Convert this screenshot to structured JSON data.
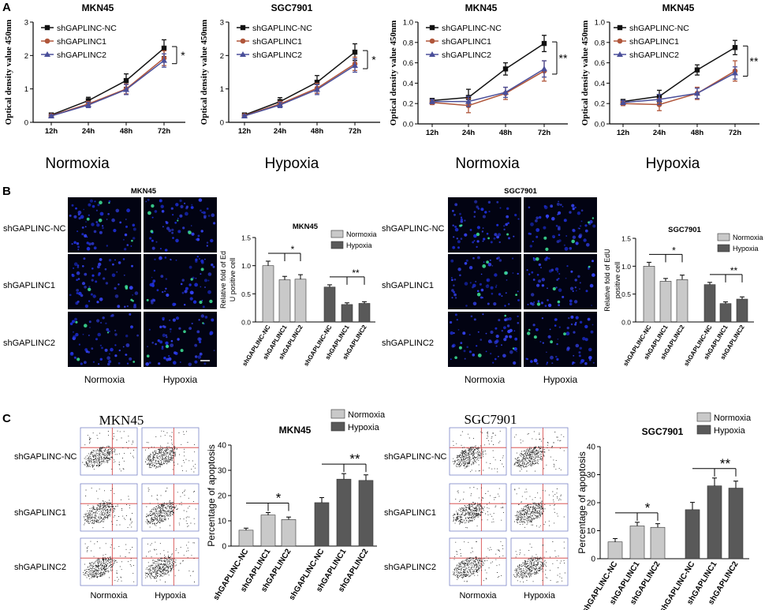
{
  "panel_labels": [
    "A",
    "B",
    "C"
  ],
  "colors": {
    "nc": "#111111",
    "c1": "#b0563a",
    "c2": "#4a4f9a",
    "normoxia": "#c9c9c9",
    "hypoxia": "#595959"
  },
  "chart_data": [
    {
      "type": "line",
      "panel": "A",
      "title": "MKN45",
      "condition": "Normoxia",
      "categories": [
        "12h",
        "24h",
        "48h",
        "72h"
      ],
      "ylabel": "Optical density value 450nm",
      "ylim": [
        0,
        3
      ],
      "yticks": [
        0,
        1,
        2,
        3
      ],
      "series": [
        {
          "name": "shGAPLINC-NC",
          "key": "nc",
          "values": [
            0.22,
            0.65,
            1.25,
            2.22
          ],
          "err": [
            0.03,
            0.1,
            0.2,
            0.25
          ]
        },
        {
          "name": "shGAPLINC1",
          "key": "c1",
          "values": [
            0.2,
            0.55,
            1.0,
            1.92
          ],
          "err": [
            0.03,
            0.08,
            0.15,
            0.22
          ]
        },
        {
          "name": "shGAPLINC2",
          "key": "c2",
          "values": [
            0.19,
            0.52,
            0.98,
            1.85
          ],
          "err": [
            0.03,
            0.08,
            0.15,
            0.2
          ]
        }
      ],
      "significance": "*"
    },
    {
      "type": "line",
      "panel": "A",
      "title": "SGC7901",
      "condition": "Hypoxia",
      "categories": [
        "12h",
        "24h",
        "48h",
        "72h"
      ],
      "ylabel": "Optical density value 450nm",
      "ylim": [
        0,
        3
      ],
      "yticks": [
        0,
        1,
        2,
        3
      ],
      "series": [
        {
          "name": "shGAPLINC-NC",
          "key": "nc",
          "values": [
            0.22,
            0.62,
            1.2,
            2.1
          ],
          "err": [
            0.03,
            0.12,
            0.2,
            0.25
          ]
        },
        {
          "name": "shGAPLINC1",
          "key": "c1",
          "values": [
            0.2,
            0.55,
            1.02,
            1.75
          ],
          "err": [
            0.03,
            0.08,
            0.15,
            0.2
          ]
        },
        {
          "name": "shGAPLINC2",
          "key": "c2",
          "values": [
            0.19,
            0.52,
            0.98,
            1.7
          ],
          "err": [
            0.03,
            0.08,
            0.15,
            0.2
          ]
        }
      ],
      "significance": "*"
    },
    {
      "type": "line",
      "panel": "A",
      "title": "MKN45",
      "condition": "Normoxia",
      "categories": [
        "12h",
        "24h",
        "48h",
        "72h"
      ],
      "ylabel": "Optical density value 450nm",
      "ylim": [
        0,
        1.0
      ],
      "yticks": [
        0,
        0.2,
        0.4,
        0.6,
        0.8,
        1.0
      ],
      "series": [
        {
          "name": "shGAPLINC-NC",
          "key": "nc",
          "values": [
            0.23,
            0.26,
            0.54,
            0.79
          ],
          "err": [
            0.02,
            0.08,
            0.06,
            0.08
          ]
        },
        {
          "name": "shGAPLINC1",
          "key": "c1",
          "values": [
            0.21,
            0.18,
            0.3,
            0.52
          ],
          "err": [
            0.02,
            0.07,
            0.06,
            0.1
          ]
        },
        {
          "name": "shGAPLINC2",
          "key": "c2",
          "values": [
            0.22,
            0.22,
            0.31,
            0.54
          ],
          "err": [
            0.02,
            0.05,
            0.05,
            0.08
          ]
        }
      ],
      "significance": "**"
    },
    {
      "type": "line",
      "panel": "A",
      "title": "MKN45",
      "condition": "Hypoxia",
      "categories": [
        "12h",
        "24h",
        "48h",
        "72h"
      ],
      "ylabel": "Optical density value 450nm",
      "ylim": [
        0,
        1.0
      ],
      "yticks": [
        0,
        0.2,
        0.4,
        0.6,
        0.8,
        1.0
      ],
      "series": [
        {
          "name": "shGAPLINC-NC",
          "key": "nc",
          "values": [
            0.22,
            0.27,
            0.53,
            0.75
          ],
          "err": [
            0.02,
            0.06,
            0.05,
            0.07
          ]
        },
        {
          "name": "shGAPLINC1",
          "key": "c1",
          "values": [
            0.2,
            0.19,
            0.3,
            0.52
          ],
          "err": [
            0.02,
            0.06,
            0.06,
            0.1
          ]
        },
        {
          "name": "shGAPLINC2",
          "key": "c2",
          "values": [
            0.21,
            0.24,
            0.3,
            0.5
          ],
          "err": [
            0.02,
            0.05,
            0.05,
            0.06
          ]
        }
      ],
      "significance": "**"
    },
    {
      "type": "bar",
      "panel": "B",
      "title": "MKN45",
      "ylabel_lines": [
        "Relative fold of Ed",
        "U positive cell"
      ],
      "ylim": [
        0,
        1.5
      ],
      "yticks": [
        0,
        0.5,
        1.0,
        1.5
      ],
      "categories": [
        "shGAPLINC-NC",
        "shGAPLINC1",
        "shGAPLINC2",
        "shGAPLINC-NC",
        "shGAPLINC1",
        "shGAPLINC2"
      ],
      "groups": [
        "normoxia",
        "normoxia",
        "normoxia",
        "hypoxia",
        "hypoxia",
        "hypoxia"
      ],
      "values": [
        1.0,
        0.75,
        0.76,
        0.62,
        0.31,
        0.33
      ],
      "err": [
        0.08,
        0.06,
        0.08,
        0.04,
        0.03,
        0.03
      ],
      "legend": [
        "Normoxia",
        "Hypoxia"
      ],
      "significance": [
        "*",
        "**"
      ]
    },
    {
      "type": "bar",
      "panel": "B",
      "title": "SGC7901",
      "ylabel_lines": [
        "Relative fold of EdU",
        "positive cell"
      ],
      "ylim": [
        0,
        1.5
      ],
      "yticks": [
        0,
        0.5,
        1.0,
        1.5
      ],
      "categories": [
        "shGAPLINC-NC",
        "shGAPLINC1",
        "shGAPLINC2",
        "shGAPLINC-NC",
        "shGAPLINC1",
        "shGAPLINC2"
      ],
      "groups": [
        "normoxia",
        "normoxia",
        "normoxia",
        "hypoxia",
        "hypoxia",
        "hypoxia"
      ],
      "values": [
        1.0,
        0.73,
        0.76,
        0.67,
        0.33,
        0.41
      ],
      "err": [
        0.07,
        0.05,
        0.08,
        0.04,
        0.03,
        0.04
      ],
      "legend": [
        "Normoxia",
        "Hypoxia"
      ],
      "significance": [
        "*",
        "**"
      ]
    },
    {
      "type": "bar",
      "panel": "C",
      "title": "MKN45",
      "ylabel": "Percentage of apoptosis",
      "ylim": [
        0,
        40
      ],
      "yticks": [
        0,
        10,
        20,
        30,
        40
      ],
      "categories": [
        "shGAPLINC-NC",
        "shGAPLINC1",
        "shGAPLINC2",
        "shGAPLINC-NC",
        "shGAPLINC1",
        "shGAPLINC2"
      ],
      "groups": [
        "normoxia",
        "normoxia",
        "normoxia",
        "hypoxia",
        "hypoxia",
        "hypoxia"
      ],
      "values": [
        6.3,
        12.3,
        10.5,
        17.2,
        26.5,
        26.0
      ],
      "err": [
        0.8,
        1.0,
        1.0,
        2.0,
        2.2,
        2.2
      ],
      "legend": [
        "Normoxia",
        "Hypoxia"
      ],
      "significance": [
        "*",
        "**"
      ]
    },
    {
      "type": "bar",
      "panel": "C",
      "title": "SGC7901",
      "ylabel": "Percentage of apoptosis",
      "ylim": [
        0,
        40
      ],
      "yticks": [
        0,
        10,
        20,
        30,
        40
      ],
      "categories": [
        "shGAPLINC-NC",
        "shGAPLINC1",
        "shGAPLINC2",
        "shGAPLINC-NC",
        "shGAPLINC1",
        "shGAPLINC2"
      ],
      "groups": [
        "normoxia",
        "normoxia",
        "normoxia",
        "hypoxia",
        "hypoxia",
        "hypoxia"
      ],
      "values": [
        6.0,
        11.7,
        11.2,
        17.5,
        26.0,
        25.2
      ],
      "err": [
        1.2,
        1.3,
        1.3,
        2.6,
        2.8,
        2.5
      ],
      "legend": [
        "Normoxia",
        "Hypoxia"
      ],
      "significance": [
        "*",
        "**"
      ]
    }
  ],
  "micrographs": [
    {
      "title": "MKN45",
      "rows": [
        "shGAPLINC-NC",
        "shGAPLINC1",
        "shGAPLINC2"
      ],
      "cols": [
        "Normoxia",
        "Hypoxia"
      ]
    },
    {
      "title": "SGC7901",
      "rows": [
        "shGAPLINC-NC",
        "shGAPLINC1",
        "shGAPLINC2"
      ],
      "cols": [
        "Normoxia",
        "Hypoxia"
      ]
    }
  ],
  "flow_plots": [
    {
      "title": "MKN45",
      "rows": [
        "shGAPLINC-NC",
        "shGAPLINC1",
        "shGAPLINC2"
      ],
      "cols": [
        "Normoxia",
        "Hypoxia"
      ]
    },
    {
      "title": "SGC7901",
      "rows": [
        "shGAPLINC-NC",
        "shGAPLINC1",
        "shGAPLINC2"
      ],
      "cols": [
        "Normoxia",
        "Hypoxia"
      ]
    }
  ]
}
